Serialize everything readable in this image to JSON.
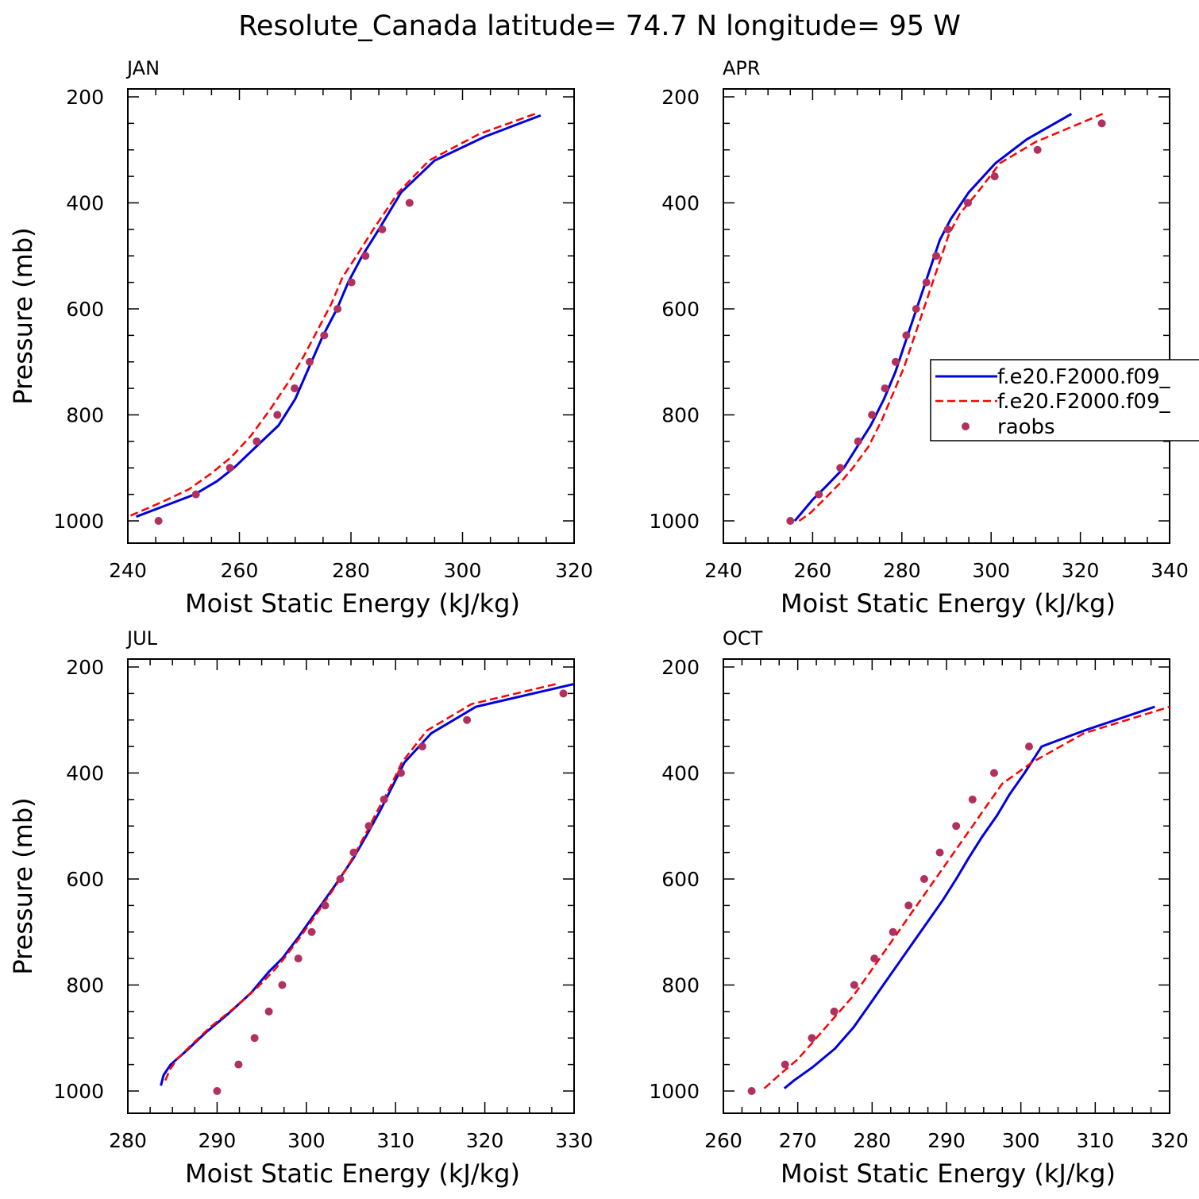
{
  "title": "Resolute_Canada  latitude= 74.7 N longitude= 95 W",
  "colors": {
    "series_solid": "#0000e0",
    "series_dashed": "#ff0000",
    "raobs": "#b0305f",
    "axis": "#000000"
  },
  "legend": {
    "entries": [
      "f.e20.F2000.f09_",
      "f.e20.F2000.f09_",
      "raobs"
    ],
    "placement": "right edge of APR panel"
  },
  "chart_data": [
    {
      "type": "line",
      "panel": "JAN",
      "xlabel": "Moist Static Energy (kJ/kg)",
      "ylabel": "Pressure (mb)",
      "xlim": [
        240,
        320
      ],
      "ylim": [
        1000,
        200
      ],
      "xticks": [
        240,
        260,
        280,
        300,
        320
      ],
      "yticks": [
        200,
        400,
        600,
        800,
        1000
      ],
      "series": [
        {
          "style": "solid",
          "x": [
            241.5,
            247,
            252,
            256,
            259,
            263,
            267,
            270,
            272.5,
            275,
            277.5,
            279.5,
            282,
            285,
            289,
            295,
            304,
            314
          ],
          "y": [
            992,
            970,
            950,
            925,
            900,
            860,
            820,
            770,
            710,
            650,
            600,
            550,
            500,
            450,
            380,
            320,
            275,
            235
          ]
        },
        {
          "style": "dashed",
          "x": [
            240.5,
            246,
            251,
            255,
            258.5,
            262,
            265.5,
            269,
            271.5,
            274,
            276.5,
            278.5,
            281,
            284,
            288.5,
            294,
            303,
            313
          ],
          "y": [
            990,
            965,
            940,
            910,
            880,
            840,
            790,
            735,
            690,
            640,
            590,
            540,
            500,
            450,
            380,
            320,
            270,
            232
          ]
        },
        {
          "style": "points",
          "x": [
            245.5,
            252.2,
            258.3,
            263.1,
            266.8,
            269.9,
            272.6,
            275.2,
            277.6,
            280.1,
            282.6,
            285.6,
            290.5
          ],
          "y": [
            1000,
            950,
            900,
            850,
            800,
            750,
            700,
            650,
            600,
            550,
            500,
            450,
            400
          ]
        }
      ]
    },
    {
      "type": "line",
      "panel": "APR",
      "xlabel": "Moist Static Energy (kJ/kg)",
      "ylabel": "",
      "xlim": [
        240,
        340
      ],
      "ylim": [
        1000,
        200
      ],
      "xticks": [
        240,
        260,
        280,
        300,
        320,
        340
      ],
      "yticks": [
        200,
        400,
        600,
        800,
        1000
      ],
      "series": [
        {
          "style": "solid",
          "x": [
            256,
            257.5,
            260,
            263,
            267,
            270,
            273,
            276,
            278.5,
            280.5,
            282.5,
            284.5,
            286.5,
            288.5,
            291,
            295,
            301,
            308,
            318
          ],
          "y": [
            1000,
            985,
            960,
            935,
            900,
            860,
            820,
            770,
            720,
            670,
            620,
            570,
            520,
            470,
            430,
            380,
            325,
            280,
            232
          ]
        },
        {
          "style": "dashed",
          "x": [
            257,
            259.5,
            262.5,
            266,
            269,
            272.5,
            275.5,
            278,
            280.5,
            282.5,
            284.5,
            286.5,
            288.5,
            290.5,
            293,
            297,
            302,
            310,
            325
          ],
          "y": [
            1000,
            985,
            960,
            930,
            900,
            860,
            810,
            760,
            710,
            660,
            610,
            560,
            510,
            460,
            420,
            380,
            325,
            285,
            232
          ]
        },
        {
          "style": "points",
          "x": [
            255,
            261.4,
            266.2,
            270.2,
            273.3,
            276.2,
            278.6,
            281,
            283.2,
            285.5,
            287.7,
            290.3,
            294.8,
            300.8,
            310.4,
            324.8
          ],
          "y": [
            1000,
            950,
            900,
            850,
            800,
            750,
            700,
            650,
            600,
            550,
            500,
            450,
            400,
            350,
            300,
            250
          ]
        }
      ]
    },
    {
      "type": "line",
      "panel": "JUL",
      "xlabel": "Moist Static Energy (kJ/kg)",
      "ylabel": "Pressure (mb)",
      "xlim": [
        280,
        330
      ],
      "ylim": [
        1000,
        200
      ],
      "xticks": [
        280,
        290,
        300,
        310,
        320,
        330
      ],
      "yticks": [
        200,
        400,
        600,
        800,
        1000
      ],
      "series": [
        {
          "style": "solid",
          "x": [
            283.7,
            284,
            284.8,
            286.5,
            288.7,
            291.2,
            293.8,
            295.8,
            297.3,
            299.1,
            301.2,
            303.3,
            305.3,
            307,
            308.3,
            309.5,
            311,
            314,
            319,
            330
          ],
          "y": [
            990,
            970,
            950,
            925,
            890,
            855,
            815,
            775,
            750,
            710,
            660,
            610,
            560,
            510,
            470,
            430,
            380,
            325,
            275,
            232
          ]
        },
        {
          "style": "dashed",
          "x": [
            284.2,
            284.7,
            285.5,
            287,
            289.2,
            291.8,
            294.5,
            296.5,
            297.5,
            299.3,
            301.4,
            303.4,
            305.2,
            306.8,
            308,
            309.3,
            310.7,
            313.5,
            318.5,
            328
          ],
          "y": [
            980,
            960,
            940,
            915,
            880,
            845,
            805,
            770,
            750,
            710,
            660,
            610,
            560,
            510,
            470,
            430,
            380,
            320,
            270,
            232
          ]
        },
        {
          "style": "points",
          "x": [
            290,
            292.4,
            294.2,
            295.8,
            297.3,
            299.1,
            300.6,
            302.1,
            303.8,
            305.3,
            307,
            308.7,
            310.6,
            313,
            318,
            328.8
          ],
          "y": [
            1000,
            950,
            900,
            850,
            800,
            750,
            700,
            650,
            600,
            550,
            500,
            450,
            400,
            350,
            300,
            250
          ]
        }
      ]
    },
    {
      "type": "line",
      "panel": "OCT",
      "xlabel": "Moist Static Energy (kJ/kg)",
      "ylabel": "",
      "xlim": [
        260,
        320
      ],
      "ylim": [
        1000,
        200
      ],
      "xticks": [
        260,
        270,
        280,
        290,
        300,
        310,
        320
      ],
      "yticks": [
        200,
        400,
        600,
        800,
        1000
      ],
      "series": [
        {
          "style": "solid",
          "x": [
            268.2,
            269.5,
            272,
            275,
            277.5,
            279.5,
            281.5,
            283.5,
            285.5,
            287.5,
            289.5,
            291.3,
            293,
            294.8,
            296.8,
            298.5,
            300.5,
            302.8,
            308.5,
            318
          ],
          "y": [
            995,
            980,
            955,
            920,
            880,
            840,
            800,
            760,
            720,
            680,
            640,
            600,
            560,
            520,
            480,
            440,
            400,
            350,
            320,
            275
          ]
        },
        {
          "style": "dashed",
          "x": [
            265.5,
            267.5,
            270,
            272.5,
            275,
            277.5,
            279.5,
            281.5,
            283.5,
            285.5,
            287.5,
            289.5,
            291.5,
            293.5,
            295.5,
            297.5,
            301.5,
            308.5,
            320
          ],
          "y": [
            995,
            970,
            940,
            900,
            860,
            820,
            780,
            740,
            700,
            660,
            620,
            580,
            540,
            500,
            460,
            420,
            380,
            325,
            275
          ]
        },
        {
          "style": "points",
          "x": [
            263.8,
            268.3,
            271.9,
            274.9,
            277.6,
            280.3,
            282.8,
            284.9,
            287,
            289.1,
            291.3,
            293.5,
            296.4,
            301.1
          ],
          "y": [
            1000,
            950,
            900,
            850,
            800,
            750,
            700,
            650,
            600,
            550,
            500,
            450,
            400,
            350
          ]
        }
      ]
    }
  ]
}
